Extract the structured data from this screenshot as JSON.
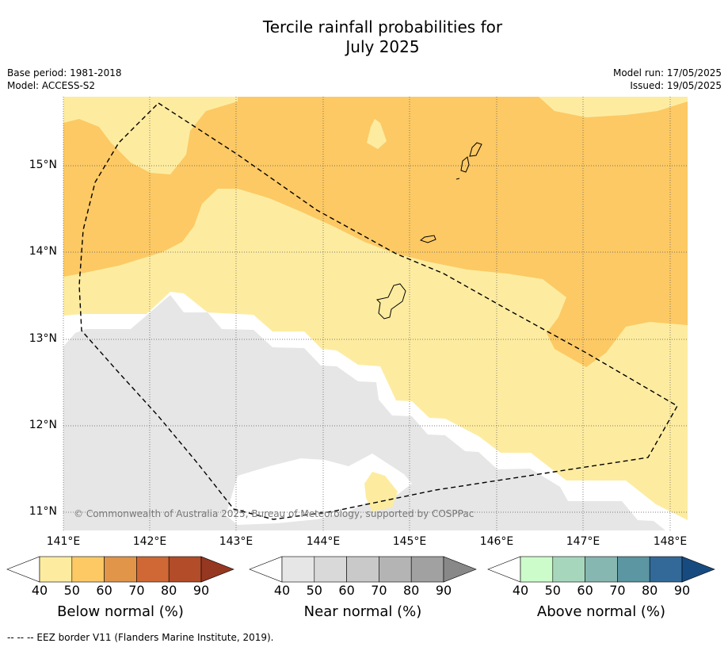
{
  "title_line1": "Tercile rainfall probabilities for",
  "title_line2": "July 2025",
  "base_period": "Base period: 1981-2018",
  "model": "Model: ACCESS-S2",
  "model_run": "Model run: 17/05/2025",
  "issued": "Issued: 19/05/2025",
  "copyright": "© Commonwealth of Australia 2025, Bureau of Meteorology, supported by COSPPac",
  "latitude_labels": [
    "15°N",
    "14°N",
    "13°N",
    "12°N",
    "11°N"
  ],
  "longitude_labels": [
    "141°E",
    "142°E",
    "143°E",
    "144°E",
    "145°E",
    "146°E",
    "147°E",
    "148°E"
  ],
  "colorbars": [
    {
      "title": "Below normal (%)",
      "ticks": [
        "40",
        "50",
        "60",
        "70",
        "80",
        "90"
      ],
      "colors": [
        "#fdeca0",
        "#fcc964",
        "#e09549",
        "#cf6834",
        "#b34c28",
        "#963722"
      ]
    },
    {
      "title": "Near normal (%)",
      "ticks": [
        "40",
        "50",
        "60",
        "70",
        "80",
        "90"
      ],
      "colors": [
        "#e6e6e6",
        "#d9d9d9",
        "#c9c9c9",
        "#b4b4b4",
        "#a1a1a1",
        "#888888"
      ]
    },
    {
      "title": "Above normal (%)",
      "ticks": [
        "40",
        "50",
        "60",
        "70",
        "80",
        "90"
      ],
      "colors": [
        "#ccfcca",
        "#a6d7bc",
        "#86b7b0",
        "#5b96a2",
        "#336998",
        "#174b80"
      ]
    }
  ],
  "footnote": "--  --  -- EEZ border V11 (Flanders Marine Institute, 2019)."
}
